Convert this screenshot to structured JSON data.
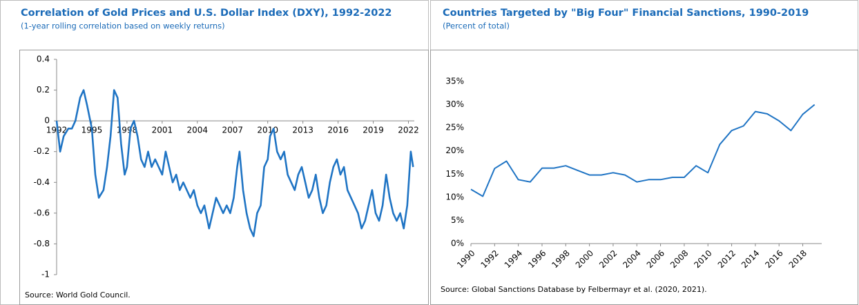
{
  "chart_data": [
    {
      "type": "line",
      "title": "Correlation of Gold Prices and U.S. Dollar Index (DXY), 1992-2022",
      "subtitle": "(1-year rolling correlation based on weekly returns)",
      "source": "Source: World Gold Council.",
      "color": "#1f74c4",
      "x": [
        1992.0,
        1992.3,
        1992.6,
        1993.0,
        1993.3,
        1993.6,
        1994.0,
        1994.3,
        1994.6,
        1995.0,
        1995.3,
        1995.6,
        1996.0,
        1996.3,
        1996.6,
        1996.9,
        1997.2,
        1997.5,
        1997.8,
        1998.0,
        1998.3,
        1998.6,
        1998.9,
        1999.2,
        1999.5,
        1999.8,
        2000.1,
        2000.4,
        2000.7,
        2001.0,
        2001.3,
        2001.6,
        2001.9,
        2002.2,
        2002.5,
        2002.8,
        2003.1,
        2003.4,
        2003.7,
        2004.0,
        2004.3,
        2004.6,
        2005.0,
        2005.3,
        2005.6,
        2005.9,
        2006.2,
        2006.5,
        2006.8,
        2007.1,
        2007.4,
        2007.6,
        2007.9,
        2008.2,
        2008.5,
        2008.8,
        2009.1,
        2009.4,
        2009.7,
        2010.0,
        2010.2,
        2010.5,
        2010.8,
        2011.1,
        2011.4,
        2011.7,
        2012.0,
        2012.3,
        2012.6,
        2012.9,
        2013.2,
        2013.5,
        2013.8,
        2014.1,
        2014.4,
        2014.7,
        2015.0,
        2015.3,
        2015.6,
        2015.9,
        2016.2,
        2016.5,
        2016.8,
        2017.1,
        2017.4,
        2017.7,
        2018.0,
        2018.3,
        2018.6,
        2018.9,
        2019.2,
        2019.5,
        2019.8,
        2020.1,
        2020.4,
        2020.7,
        2021.0,
        2021.3,
        2021.6,
        2021.9,
        2022.2,
        2022.4
      ],
      "values": [
        0,
        -0.2,
        -0.1,
        -0.05,
        -0.05,
        0,
        0.15,
        0.2,
        0.1,
        -0.05,
        -0.35,
        -0.5,
        -0.45,
        -0.3,
        -0.1,
        0.2,
        0.15,
        -0.15,
        -0.35,
        -0.3,
        -0.05,
        0,
        -0.1,
        -0.25,
        -0.3,
        -0.2,
        -0.3,
        -0.25,
        -0.3,
        -0.35,
        -0.2,
        -0.3,
        -0.4,
        -0.35,
        -0.45,
        -0.4,
        -0.45,
        -0.5,
        -0.45,
        -0.55,
        -0.6,
        -0.55,
        -0.7,
        -0.6,
        -0.5,
        -0.55,
        -0.6,
        -0.55,
        -0.6,
        -0.5,
        -0.3,
        -0.2,
        -0.45,
        -0.6,
        -0.7,
        -0.75,
        -0.6,
        -0.55,
        -0.3,
        -0.25,
        -0.1,
        -0.05,
        -0.2,
        -0.25,
        -0.2,
        -0.35,
        -0.4,
        -0.45,
        -0.35,
        -0.3,
        -0.4,
        -0.5,
        -0.45,
        -0.35,
        -0.5,
        -0.6,
        -0.55,
        -0.4,
        -0.3,
        -0.25,
        -0.35,
        -0.3,
        -0.45,
        -0.5,
        -0.55,
        -0.6,
        -0.7,
        -0.65,
        -0.55,
        -0.45,
        -0.6,
        -0.65,
        -0.55,
        -0.35,
        -0.5,
        -0.6,
        -0.65,
        -0.6,
        -0.7,
        -0.55,
        -0.2,
        -0.3
      ],
      "xlim": [
        1992,
        2022.5
      ],
      "xticks": [
        1992,
        1995,
        1998,
        2001,
        2004,
        2007,
        2010,
        2013,
        2016,
        2019,
        2022
      ],
      "ylim": [
        -1,
        0.4
      ],
      "yticks": [
        -1,
        -0.8,
        -0.6,
        -0.4,
        -0.2,
        0,
        0.2,
        0.4
      ]
    },
    {
      "type": "line",
      "title": "Countries Targeted by \"Big Four\" Financial Sanctions, 1990-2019",
      "subtitle": "(Percent of total)",
      "source": "Source: Global Sanctions Database by Felbermayr et al. (2020, 2021).",
      "color": "#1f74c4",
      "x": [
        1990,
        1991,
        1992,
        1993,
        1994,
        1995,
        1996,
        1997,
        1998,
        1999,
        2000,
        2001,
        2002,
        2003,
        2004,
        2005,
        2006,
        2007,
        2008,
        2009,
        2010,
        2011,
        2012,
        2013,
        2014,
        2015,
        2016,
        2017,
        2018,
        2019
      ],
      "values": [
        11.7,
        10.2,
        16.2,
        17.8,
        13.8,
        13.3,
        16.3,
        16.3,
        16.8,
        15.8,
        14.8,
        14.8,
        15.3,
        14.8,
        13.3,
        13.8,
        13.8,
        14.3,
        14.3,
        16.8,
        15.3,
        21.4,
        24.4,
        25.4,
        28.5,
        28.0,
        26.5,
        24.4,
        27.9,
        30.0
      ],
      "xlim": [
        1990,
        2019.6
      ],
      "xticks": [
        1990,
        1992,
        1994,
        1996,
        1998,
        2000,
        2002,
        2004,
        2006,
        2008,
        2010,
        2012,
        2014,
        2016,
        2018
      ],
      "ylim": [
        0,
        35
      ],
      "yticks": [
        {
          "value": 0,
          "label": "0%"
        },
        {
          "value": 5,
          "label": "5%"
        },
        {
          "value": 10,
          "label": "10%"
        },
        {
          "value": 15,
          "label": "15%"
        },
        {
          "value": 20,
          "label": "20%"
        },
        {
          "value": 25,
          "label": "25%"
        },
        {
          "value": 30,
          "label": "30%"
        },
        {
          "value": 35,
          "label": "35%"
        }
      ]
    }
  ]
}
